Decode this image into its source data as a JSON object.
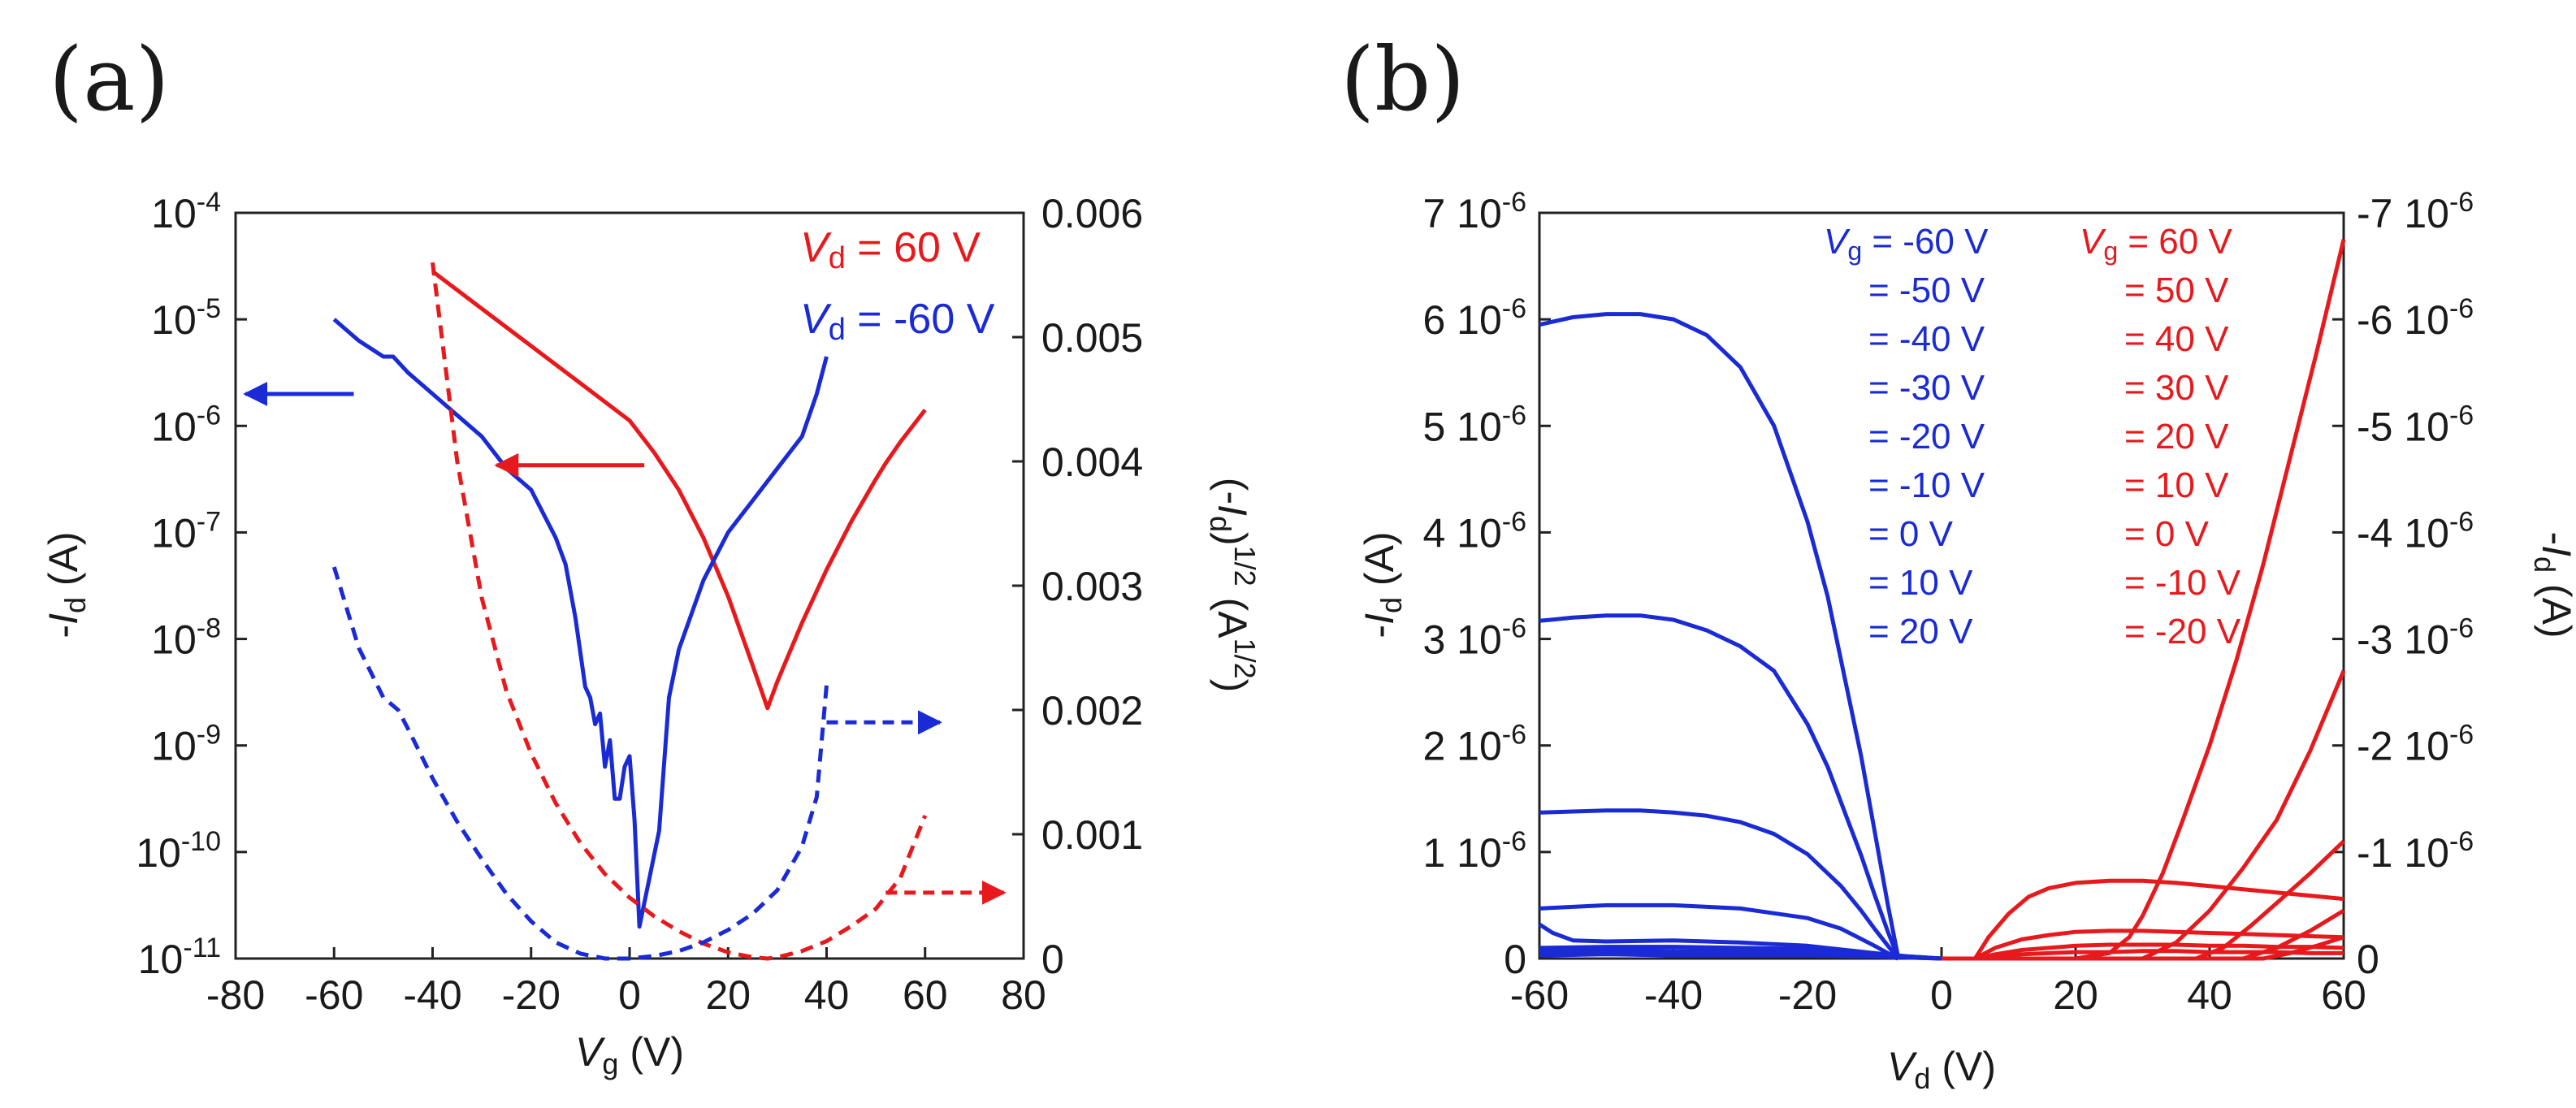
{
  "colors": {
    "red": "#e8191c",
    "blue": "#1a2bd6",
    "axis": "#222222"
  },
  "chart_data": [
    {
      "type": "line",
      "panel_label": "(a)",
      "xlabel_sym": "V",
      "xlabel_sub": "g",
      "xlabel_unit": " (V)",
      "ylabel_left": "-Id (A)",
      "ylabel_left_parts": {
        "pre": "-",
        "sym": "I",
        "sub": "d",
        "unit": " (A)"
      },
      "ylabel_right": "(-Id)1/2 (A1/2)",
      "ylabel_right_parts": {
        "pre": "(-",
        "sym": "I",
        "sub": "d",
        "mid": ")",
        "sup1": "1/2",
        "unit": " (A",
        "sup2": "1/2",
        "end": ")"
      },
      "xlim": [
        -80,
        80
      ],
      "xticks": [
        "-80",
        "-60",
        "-40",
        "-20",
        "0",
        "20",
        "40",
        "60",
        "80"
      ],
      "ylim_left_log10": [
        -11,
        -4
      ],
      "yticks_left": [
        {
          "base": "10",
          "exp": "-4"
        },
        {
          "base": "10",
          "exp": "-5"
        },
        {
          "base": "10",
          "exp": "-6"
        },
        {
          "base": "10",
          "exp": "-7"
        },
        {
          "base": "10",
          "exp": "-8"
        },
        {
          "base": "10",
          "exp": "-9"
        },
        {
          "base": "10",
          "exp": "-10"
        },
        {
          "base": "10",
          "exp": "-11"
        }
      ],
      "ylim_right": [
        0,
        0.006
      ],
      "yticks_right": [
        "0.006",
        "0.005",
        "0.004",
        "0.003",
        "0.002",
        "0.001",
        "0"
      ],
      "legend": [
        {
          "sym": "V",
          "sub": "d",
          "text": " = 60 V",
          "color": "red"
        },
        {
          "sym": "V",
          "sub": "d",
          "text": " = -60 V",
          "color": "blue"
        }
      ],
      "series": [
        {
          "name": "Vd = 60 V, -Id (log)",
          "color": "red",
          "style": "solid",
          "axis": "left",
          "x": [
            -40,
            -30,
            -20,
            -10,
            0,
            5,
            10,
            15,
            20,
            25,
            28,
            30,
            35,
            40,
            45,
            50,
            52,
            55,
            60
          ],
          "y_log10": [
            -4.55,
            -4.9,
            -5.25,
            -5.6,
            -5.95,
            -6.25,
            -6.6,
            -7.05,
            -7.6,
            -8.25,
            -8.65,
            -8.4,
            -7.85,
            -7.35,
            -6.9,
            -6.5,
            -6.35,
            -6.15,
            -5.85
          ]
        },
        {
          "name": "Vd = -60 V, -Id (log)",
          "color": "blue",
          "style": "solid",
          "axis": "left",
          "x": [
            -60,
            -55,
            -50,
            -48,
            -45,
            -40,
            -35,
            -30,
            -25,
            -20,
            -15,
            -13,
            -11,
            -9,
            -8,
            -7,
            -6,
            -5,
            -4,
            -3,
            -2,
            -1,
            0,
            1,
            2,
            4,
            6,
            8,
            10,
            15,
            20,
            25,
            30,
            35,
            38,
            40
          ],
          "y_log10": [
            -5.0,
            -5.2,
            -5.35,
            -5.35,
            -5.5,
            -5.7,
            -5.9,
            -6.1,
            -6.4,
            -6.6,
            -7.05,
            -7.3,
            -7.8,
            -8.45,
            -8.55,
            -8.8,
            -8.7,
            -9.2,
            -8.95,
            -9.5,
            -9.5,
            -9.2,
            -9.1,
            -9.7,
            -10.7,
            -10.25,
            -9.8,
            -8.55,
            -8.1,
            -7.45,
            -7.0,
            -6.7,
            -6.4,
            -6.1,
            -5.7,
            -5.35
          ]
        },
        {
          "name": "Vd = 60 V, (-Id)^1/2",
          "color": "red",
          "style": "dashed",
          "axis": "right",
          "x": [
            -40,
            -35,
            -30,
            -25,
            -20,
            -15,
            -10,
            -5,
            0,
            5,
            10,
            15,
            20,
            25,
            28,
            30,
            35,
            40,
            45,
            50,
            55,
            60
          ],
          "y": [
            0.0056,
            0.004,
            0.0029,
            0.00215,
            0.00165,
            0.00125,
            0.00093,
            0.00068,
            0.00049,
            0.00034,
            0.00022,
            0.00012,
            5e-05,
            1e-05,
            0.0,
            1e-05,
            6e-05,
            0.00014,
            0.00026,
            0.0004,
            0.00065,
            0.00115
          ]
        },
        {
          "name": "Vd = -60 V, (-Id)^1/2",
          "color": "blue",
          "style": "dashed",
          "axis": "right",
          "x": [
            -60,
            -55,
            -50,
            -47,
            -45,
            -40,
            -35,
            -30,
            -25,
            -20,
            -15,
            -10,
            -5,
            0,
            5,
            10,
            15,
            20,
            25,
            30,
            35,
            38,
            40
          ],
          "y": [
            0.00315,
            0.0025,
            0.0021,
            0.002,
            0.00185,
            0.00145,
            0.0011,
            0.0008,
            0.00052,
            0.0003,
            0.00013,
            4e-05,
            0.0,
            0.0,
            2e-05,
            6e-05,
            0.00013,
            0.00023,
            0.00036,
            0.00055,
            0.0009,
            0.0013,
            0.0022
          ]
        }
      ],
      "arrows": [
        {
          "color": "blue",
          "target": "left",
          "x_from": -56,
          "x_to": -78,
          "y_log10": -5.7
        },
        {
          "color": "red",
          "target": "left",
          "x_from": 3,
          "x_to": -27,
          "y_log10": -6.37
        },
        {
          "color": "blue",
          "target": "right",
          "x_from": 40,
          "x_to": 63,
          "y": 0.0019
        },
        {
          "color": "red",
          "target": "right",
          "x_from": 52,
          "x_to": 76,
          "y": 0.00053
        }
      ]
    },
    {
      "type": "line",
      "panel_label": "(b)",
      "xlabel_sym": "V",
      "xlabel_sub": "d",
      "xlabel_unit": " (V)",
      "ylabel_left": "-Id (A)",
      "ylabel_left_parts": {
        "pre": "-",
        "sym": "I",
        "sub": "d",
        "unit": " (A)"
      },
      "ylabel_right": "-Id (A)",
      "ylabel_right_parts": {
        "pre": "-",
        "sym": "I",
        "sub": "d",
        "unit": " (A)"
      },
      "xlim": [
        -60,
        60
      ],
      "xticks": [
        "-60",
        "-40",
        "-20",
        "0",
        "20",
        "40",
        "60"
      ],
      "ylim_left": [
        0,
        7e-06
      ],
      "yticks_left": [
        {
          "base": "7 10",
          "exp": "-6"
        },
        {
          "base": "6 10",
          "exp": "-6"
        },
        {
          "base": "5 10",
          "exp": "-6"
        },
        {
          "base": "4 10",
          "exp": "-6"
        },
        {
          "base": "3 10",
          "exp": "-6"
        },
        {
          "base": "2 10",
          "exp": "-6"
        },
        {
          "base": "1 10",
          "exp": "-6"
        },
        {
          "base": "0",
          "exp": ""
        }
      ],
      "yticks_right": [
        {
          "base": "-7 10",
          "exp": "-6"
        },
        {
          "base": "-6 10",
          "exp": "-6"
        },
        {
          "base": "-5 10",
          "exp": "-6"
        },
        {
          "base": "-4 10",
          "exp": "-6"
        },
        {
          "base": "-3 10",
          "exp": "-6"
        },
        {
          "base": "-2 10",
          "exp": "-6"
        },
        {
          "base": "-1 10",
          "exp": "-6"
        },
        {
          "base": "0",
          "exp": ""
        }
      ],
      "legend_blue_first": {
        "sym": "V",
        "sub": "g",
        "text": " = -60 V"
      },
      "legend_blue": [
        "= -50 V",
        "= -40 V",
        "= -30 V",
        "= -20 V",
        "= -10 V",
        "= 0 V",
        "= 10 V",
        "= 20 V"
      ],
      "legend_red_first": {
        "sym": "V",
        "sub": "g",
        "text": " = 60 V"
      },
      "legend_red": [
        "= 50 V",
        "= 40 V",
        "= 30 V",
        "= 20 V",
        "= 10 V",
        "= 0 V",
        "= -10 V",
        "= -20 V"
      ],
      "series_blue": [
        {
          "Vg": -60,
          "x": [
            -60,
            -55,
            -50,
            -45,
            -40,
            -35,
            -30,
            -25,
            -20,
            -17,
            -14,
            -12,
            -10,
            -8,
            -6.5
          ],
          "y": [
            5.95e-06,
            6.02e-06,
            6.05e-06,
            6.05e-06,
            6e-06,
            5.85e-06,
            5.55e-06,
            5e-06,
            4.1e-06,
            3.4e-06,
            2.5e-06,
            1.9e-06,
            1.2e-06,
            5e-07,
            2e-08
          ]
        },
        {
          "Vg": -50,
          "x": [
            -60,
            -55,
            -50,
            -45,
            -40,
            -35,
            -30,
            -25,
            -20,
            -17,
            -14,
            -12,
            -10,
            -8,
            -6.5
          ],
          "y": [
            3.17e-06,
            3.2e-06,
            3.22e-06,
            3.22e-06,
            3.18e-06,
            3.08e-06,
            2.93e-06,
            2.7e-06,
            2.2e-06,
            1.8e-06,
            1.3e-06,
            9.7e-07,
            6e-07,
            2.5e-07,
            1e-08
          ]
        },
        {
          "Vg": -40,
          "x": [
            -60,
            -55,
            -50,
            -45,
            -40,
            -35,
            -30,
            -25,
            -20,
            -15,
            -12,
            -10,
            -8,
            -6.5
          ],
          "y": [
            1.37e-06,
            1.38e-06,
            1.39e-06,
            1.39e-06,
            1.37e-06,
            1.34e-06,
            1.28e-06,
            1.17e-06,
            9.8e-07,
            6.8e-07,
            4.5e-07,
            2.8e-07,
            1.2e-07,
            0.0
          ]
        },
        {
          "Vg": -30,
          "x": [
            -60,
            -50,
            -40,
            -30,
            -20,
            -15,
            -10,
            -8,
            -6.5
          ],
          "y": [
            4.7e-07,
            5e-07,
            5e-07,
            4.7e-07,
            3.8e-07,
            2.8e-07,
            1.2e-07,
            5e-08,
            0.0
          ]
        },
        {
          "Vg": -20,
          "x": [
            -60,
            -58,
            -55,
            -50,
            -40,
            -30,
            -20,
            -10,
            -6.5
          ],
          "y": [
            3.2e-07,
            2.4e-07,
            1.7e-07,
            1.6e-07,
            1.7e-07,
            1.5e-07,
            1.2e-07,
            5e-08,
            0.0
          ]
        },
        {
          "Vg": -10,
          "x": [
            -60,
            -50,
            -40,
            -30,
            -20,
            -10,
            -5,
            0
          ],
          "y": [
            1e-07,
            1.1e-07,
            1.1e-07,
            1e-07,
            9e-08,
            5e-08,
            2e-08,
            0.0
          ]
        },
        {
          "Vg": 0,
          "x": [
            -60,
            -50,
            -40,
            -30,
            -20,
            -10,
            -5,
            0
          ],
          "y": [
            7e-08,
            8e-08,
            7e-08,
            7e-08,
            6e-08,
            4e-08,
            2e-08,
            0.0
          ]
        },
        {
          "Vg": 10,
          "x": [
            -60,
            -50,
            -40,
            -30,
            -20,
            -10,
            -5,
            0
          ],
          "y": [
            5e-08,
            6e-08,
            5e-08,
            5e-08,
            5e-08,
            3e-08,
            1e-08,
            0.0
          ]
        },
        {
          "Vg": 20,
          "x": [
            -60,
            -50,
            -40,
            -30,
            -20,
            -10,
            -5,
            0
          ],
          "y": [
            3e-08,
            4e-08,
            3e-08,
            3e-08,
            3e-08,
            2e-08,
            1e-08,
            0.0
          ]
        }
      ],
      "series_red": [
        {
          "Vg": 60,
          "x": [
            0,
            20,
            25,
            28,
            30,
            33,
            36,
            40,
            44,
            48,
            52,
            56,
            60
          ],
          "y": [
            0.0,
            0.0,
            5e-08,
            2e-07,
            4e-07,
            8e-07,
            1.3e-06,
            2e-06,
            2.8e-06,
            3.7e-06,
            4.7e-06,
            5.7e-06,
            6.75e-06
          ]
        },
        {
          "Vg": 50,
          "x": [
            0,
            30,
            35,
            40,
            45,
            50,
            55,
            60
          ],
          "y": [
            0.0,
            0.0,
            1.5e-07,
            4.5e-07,
            8.5e-07,
            1.3e-06,
            1.95e-06,
            2.7e-06
          ]
        },
        {
          "Vg": 40,
          "x": [
            0,
            38,
            42,
            46,
            50,
            55,
            60
          ],
          "y": [
            0.0,
            0.0,
            1e-07,
            3e-07,
            5.2e-07,
            8e-07,
            1.1e-06
          ]
        },
        {
          "Vg": 30,
          "x": [
            0,
            45,
            50,
            55,
            60
          ],
          "y": [
            0.0,
            0.0,
            1e-07,
            2.6e-07,
            4.5e-07
          ]
        },
        {
          "Vg": 20,
          "x": [
            0,
            48,
            52,
            56,
            60
          ],
          "y": [
            0.0,
            0.0,
            5e-08,
            1.2e-07,
            2e-07
          ]
        },
        {
          "Vg": 10,
          "x": [
            5,
            7,
            10,
            13,
            16,
            20,
            25,
            30,
            35,
            40,
            45,
            50,
            55,
            60
          ],
          "y": [
            0.0,
            2e-07,
            4.2e-07,
            5.8e-07,
            6.6e-07,
            7.1e-07,
            7.3e-07,
            7.3e-07,
            7.1e-07,
            6.8e-07,
            6.5e-07,
            6.2e-07,
            5.9e-07,
            5.6e-07
          ]
        },
        {
          "Vg": 0,
          "x": [
            5,
            8,
            12,
            16,
            20,
            25,
            30,
            35,
            40,
            45,
            50,
            55,
            60
          ],
          "y": [
            0.0,
            1e-07,
            1.8e-07,
            2.2e-07,
            2.5e-07,
            2.6e-07,
            2.6e-07,
            2.5e-07,
            2.4e-07,
            2.3e-07,
            2.2e-07,
            2.1e-07,
            2e-07
          ]
        },
        {
          "Vg": -10,
          "x": [
            5,
            8,
            12,
            16,
            20,
            25,
            30,
            35,
            40,
            45,
            50,
            55,
            60
          ],
          "y": [
            0.0,
            4e-08,
            8e-08,
            1e-07,
            1.2e-07,
            1.3e-07,
            1.3e-07,
            1.3e-07,
            1.2e-07,
            1.2e-07,
            1.1e-07,
            1.1e-07,
            1e-07
          ]
        },
        {
          "Vg": -20,
          "x": [
            5,
            8,
            12,
            16,
            20,
            25,
            30,
            35,
            40,
            45,
            50,
            55,
            60
          ],
          "y": [
            0.0,
            2e-08,
            4e-08,
            5e-08,
            6e-08,
            6e-08,
            7e-08,
            7e-08,
            6e-08,
            6e-08,
            6e-08,
            5e-08,
            5e-08
          ]
        }
      ]
    }
  ]
}
